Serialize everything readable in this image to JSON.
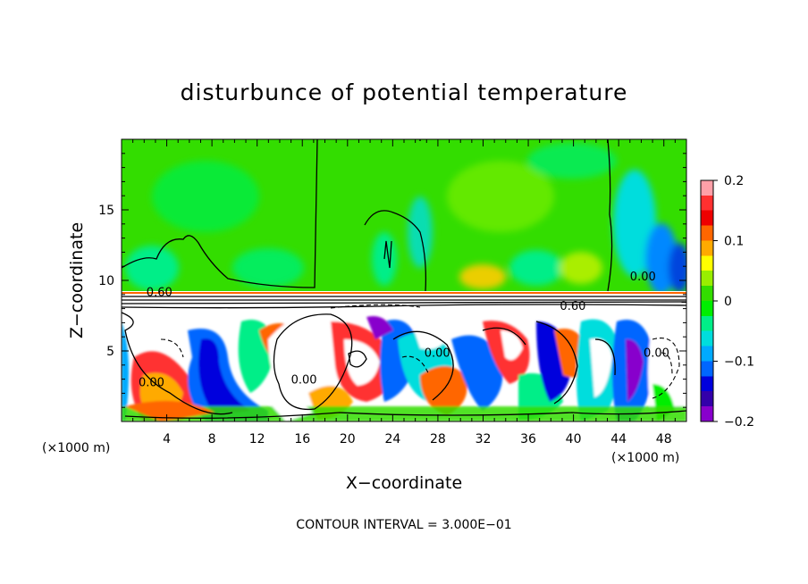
{
  "chart_data": {
    "type": "heatmap",
    "title": "disturbunce of potential temperature",
    "xlabel": "X−coordinate",
    "ylabel": "Z−coordinate",
    "x_unit_left": "(×1000 m)",
    "x_unit_right": "(×1000 m)",
    "xlim": [
      0,
      50
    ],
    "ylim": [
      0,
      20
    ],
    "x_ticks": [
      4,
      8,
      12,
      16,
      20,
      24,
      28,
      32,
      36,
      40,
      44,
      48
    ],
    "x_tick_labels": [
      "4",
      "8",
      "12",
      "16",
      "20",
      "24",
      "28",
      "32",
      "36",
      "40",
      "44",
      "48"
    ],
    "y_ticks": [
      5,
      10,
      15
    ],
    "y_tick_labels": [
      "5",
      "10",
      "15"
    ],
    "colorbar": {
      "range": [
        -0.2,
        0.2
      ],
      "tick_values": [
        0.2,
        0.1,
        0,
        -0.1,
        -0.2
      ],
      "tick_labels": [
        "0.2",
        "0.1",
        "0",
        "−0.1",
        "−0.2"
      ],
      "colors": [
        "#ffa0a8",
        "#ff3030",
        "#ee0000",
        "#ff6600",
        "#ffaa00",
        "#ffff00",
        "#99ee00",
        "#33dd00",
        "#00ee00",
        "#00ee88",
        "#00dddd",
        "#00aaff",
        "#0066ff",
        "#0000dd",
        "#3300aa",
        "#8800cc"
      ]
    },
    "contour_interval_text": "CONTOUR INTERVAL = 3.000E−01",
    "contour_labels": [
      {
        "text": "0.60",
        "x": 2.2,
        "z": 8.9
      },
      {
        "text": "0.60",
        "x": 38.8,
        "z": 7.9
      },
      {
        "text": "0.00",
        "x": 15.0,
        "z": 2.7
      },
      {
        "text": "0.00",
        "x": 26.8,
        "z": 4.6
      },
      {
        "text": "0.00",
        "x": 1.5,
        "z": 2.5
      },
      {
        "text": "0.00",
        "x": 45.0,
        "z": 10.0
      },
      {
        "text": "0.00",
        "x": 46.2,
        "z": 4.6
      }
    ]
  }
}
